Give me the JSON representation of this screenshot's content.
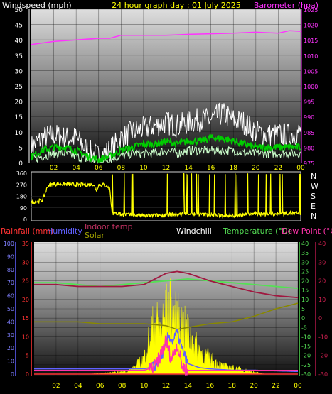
{
  "header": {
    "windspeed_label": "Windspeed (mph)",
    "title": "24 hour graph day : 01 July 2025",
    "barometer_label": "Barometer (hpa)"
  },
  "colors": {
    "wind_gust": "#ffffff",
    "wind_speed": "#00cc00",
    "wind_avg": "#ccffcc",
    "barometer": "#ff33ff",
    "direction": "#ffff00",
    "temperature": "#55e055",
    "dew_point": "#b01848",
    "indoor_temp": "#a01840",
    "humidity": "#6060ff",
    "solar": "#888800",
    "rainfall": "#ff3333",
    "uv_fill": "#ffff00"
  },
  "chart_data": [
    {
      "id": "wind",
      "type": "line",
      "title": "24 hour graph day : 01 July 2025",
      "ylabel": "Windspeed (mph)",
      "y2label": "Barometer (hpa)",
      "xticks": [
        "02",
        "04",
        "06",
        "08",
        "10",
        "12",
        "14",
        "16",
        "18",
        "20",
        "22",
        "00"
      ],
      "ylim": [
        0,
        50
      ],
      "yticks": [
        0,
        5,
        10,
        15,
        20,
        25,
        30,
        35,
        40,
        45,
        50
      ],
      "y2lim": [
        975,
        1025
      ],
      "y2ticks": [
        975,
        980,
        985,
        990,
        995,
        1000,
        1005,
        1010,
        1015,
        1020,
        1025
      ],
      "series": [
        {
          "name": "Barometer",
          "axis": "right",
          "x": [
            0,
            2,
            4,
            6,
            7,
            8,
            10,
            12,
            14,
            16,
            18,
            20,
            22,
            23,
            24
          ],
          "y": [
            1013.5,
            1014.5,
            1015,
            1015.5,
            1015.5,
            1016.5,
            1016.5,
            1016.5,
            1016.8,
            1017,
            1017.2,
            1017.5,
            1017.2,
            1018,
            1017.8
          ]
        },
        {
          "name": "Wind gust",
          "x": [
            0,
            1,
            2,
            3,
            4,
            5,
            6,
            7,
            8,
            9,
            10,
            11,
            12,
            13,
            14,
            15,
            16,
            17,
            18,
            19,
            20,
            21,
            22,
            23,
            24
          ],
          "y": [
            5,
            8,
            9,
            8,
            8,
            4,
            2,
            4,
            8,
            10,
            11,
            12,
            13,
            12,
            13,
            14,
            14,
            16,
            14,
            13,
            10,
            9,
            9,
            9,
            10
          ]
        },
        {
          "name": "Wind speed",
          "x": [
            0,
            1,
            2,
            3,
            4,
            5,
            6,
            7,
            8,
            9,
            10,
            11,
            12,
            13,
            14,
            15,
            16,
            17,
            18,
            19,
            20,
            21,
            22,
            23,
            24
          ],
          "y": [
            2,
            4,
            5,
            5,
            4,
            2,
            1,
            2,
            4,
            5,
            6,
            6,
            7,
            6,
            7,
            7,
            8,
            8,
            7,
            6,
            5,
            5,
            5,
            5,
            5
          ]
        },
        {
          "name": "Wind average",
          "x": [
            0,
            1,
            2,
            3,
            4,
            5,
            6,
            7,
            8,
            9,
            10,
            11,
            12,
            13,
            14,
            15,
            16,
            17,
            18,
            19,
            20,
            21,
            22,
            23,
            24
          ],
          "y": [
            1,
            2,
            3,
            3,
            2,
            1,
            0.5,
            1,
            2,
            3,
            3,
            3,
            4,
            3,
            4,
            4,
            4,
            4,
            4,
            3,
            3,
            3,
            3,
            3,
            3
          ]
        }
      ]
    },
    {
      "id": "direction",
      "type": "line",
      "xticks": [
        "02",
        "04",
        "06",
        "08",
        "10",
        "12",
        "14",
        "16",
        "18",
        "20",
        "22",
        "00"
      ],
      "ylim": [
        0,
        360
      ],
      "yticks": [
        0,
        90,
        180,
        270,
        360
      ],
      "compass_labels": [
        "N",
        "W",
        "S",
        "E",
        "N"
      ],
      "series": [
        {
          "name": "Wind direction",
          "x": [
            0,
            0.5,
            1,
            1.5,
            2,
            3,
            4,
            5,
            5.5,
            5.8,
            6,
            6.5,
            7,
            7.2,
            8,
            9,
            10,
            11,
            12,
            13,
            14,
            15,
            16,
            17,
            18,
            19,
            20,
            21,
            22,
            23,
            24
          ],
          "y": [
            130,
            140,
            150,
            265,
            275,
            275,
            270,
            270,
            275,
            230,
            270,
            270,
            240,
            45,
            40,
            35,
            30,
            30,
            35,
            40,
            45,
            40,
            35,
            30,
            30,
            40,
            45,
            40,
            45,
            50,
            45
          ]
        }
      ]
    },
    {
      "id": "multi",
      "type": "line",
      "legend": [
        "Rainfall (mm)",
        "Humidity",
        "Indoor temp",
        "Solar",
        "Windchill",
        "Temperature (°C)",
        "Dew Point (°C)"
      ],
      "xticks": [
        "02",
        "04",
        "06",
        "08",
        "10",
        "12",
        "14",
        "16",
        "18",
        "20",
        "22",
        "00"
      ],
      "humidity_ticks": [
        0,
        10,
        20,
        30,
        40,
        50,
        60,
        70,
        80,
        90,
        100
      ],
      "rain_ticks": [
        0,
        5,
        10,
        15,
        20,
        25,
        30,
        35
      ],
      "temp_ticks": [
        -30,
        -25,
        -20,
        -15,
        -10,
        -5,
        0,
        5,
        10,
        15,
        20,
        25,
        30,
        35,
        40
      ],
      "dew_ticks": [
        -30,
        -20,
        -10,
        0,
        10,
        20,
        30,
        40
      ],
      "series": [
        {
          "name": "Temperature (°C)",
          "axis": "temp",
          "x": [
            0,
            2,
            4,
            6,
            8,
            10,
            12,
            14,
            16,
            18,
            20,
            22,
            24
          ],
          "y": [
            19,
            19,
            18,
            17,
            18,
            19,
            20,
            21,
            20,
            19,
            18,
            17,
            16
          ]
        },
        {
          "name": "Indoor temp",
          "axis": "temp",
          "x": [
            0,
            2,
            4,
            6,
            8,
            10,
            11,
            12,
            13,
            14,
            15,
            16,
            18,
            20,
            22,
            24
          ],
          "y": [
            18,
            18,
            17,
            17,
            17,
            18,
            21,
            24,
            25,
            24,
            22,
            20,
            17,
            14,
            12,
            11
          ]
        },
        {
          "name": "Solar",
          "axis": "temp",
          "x": [
            0,
            2,
            4,
            6,
            8,
            10,
            12,
            13,
            14,
            16,
            18,
            20,
            22,
            24
          ],
          "y": [
            -2,
            -2,
            -2,
            -3,
            -3,
            -3,
            -4,
            -6,
            -5,
            -3,
            -2,
            1,
            5,
            8
          ]
        },
        {
          "name": "Rainfall (mm)",
          "axis": "rain",
          "x": [
            0,
            24
          ],
          "y": [
            0,
            0
          ]
        },
        {
          "name": "Humidity",
          "axis": "humidity",
          "x": [
            0,
            8,
            10,
            11,
            11.5,
            12,
            12.2,
            12.6,
            13,
            13.5,
            14,
            15,
            16,
            18,
            20,
            24
          ],
          "y": [
            4,
            4,
            4,
            6,
            12,
            22,
            30,
            25,
            32,
            18,
            8,
            5,
            4,
            3,
            3,
            2
          ]
        },
        {
          "name": "Dew Point (°C)",
          "axis": "temp",
          "x": [
            0,
            8,
            10,
            11,
            11.5,
            12,
            12.5,
            13,
            13.5,
            14,
            16,
            18,
            20,
            24
          ],
          "y": [
            -28,
            -28,
            -28,
            -26,
            -20,
            -12,
            -22,
            -14,
            -26,
            -28,
            -28,
            -28,
            -28,
            -28
          ]
        },
        {
          "name": "UV",
          "axis": "humidity",
          "kind": "fill",
          "x": [
            0,
            5,
            6.5,
            8,
            9,
            10,
            10.5,
            11,
            11.5,
            12,
            12.3,
            12.6,
            13,
            13.5,
            14,
            14.5,
            15,
            16,
            17,
            18,
            19,
            20,
            21,
            24
          ],
          "y": [
            0,
            0,
            1,
            2,
            5,
            15,
            35,
            48,
            42,
            55,
            62,
            58,
            52,
            45,
            38,
            30,
            22,
            15,
            8,
            6,
            4,
            2,
            0,
            0
          ]
        }
      ]
    }
  ]
}
